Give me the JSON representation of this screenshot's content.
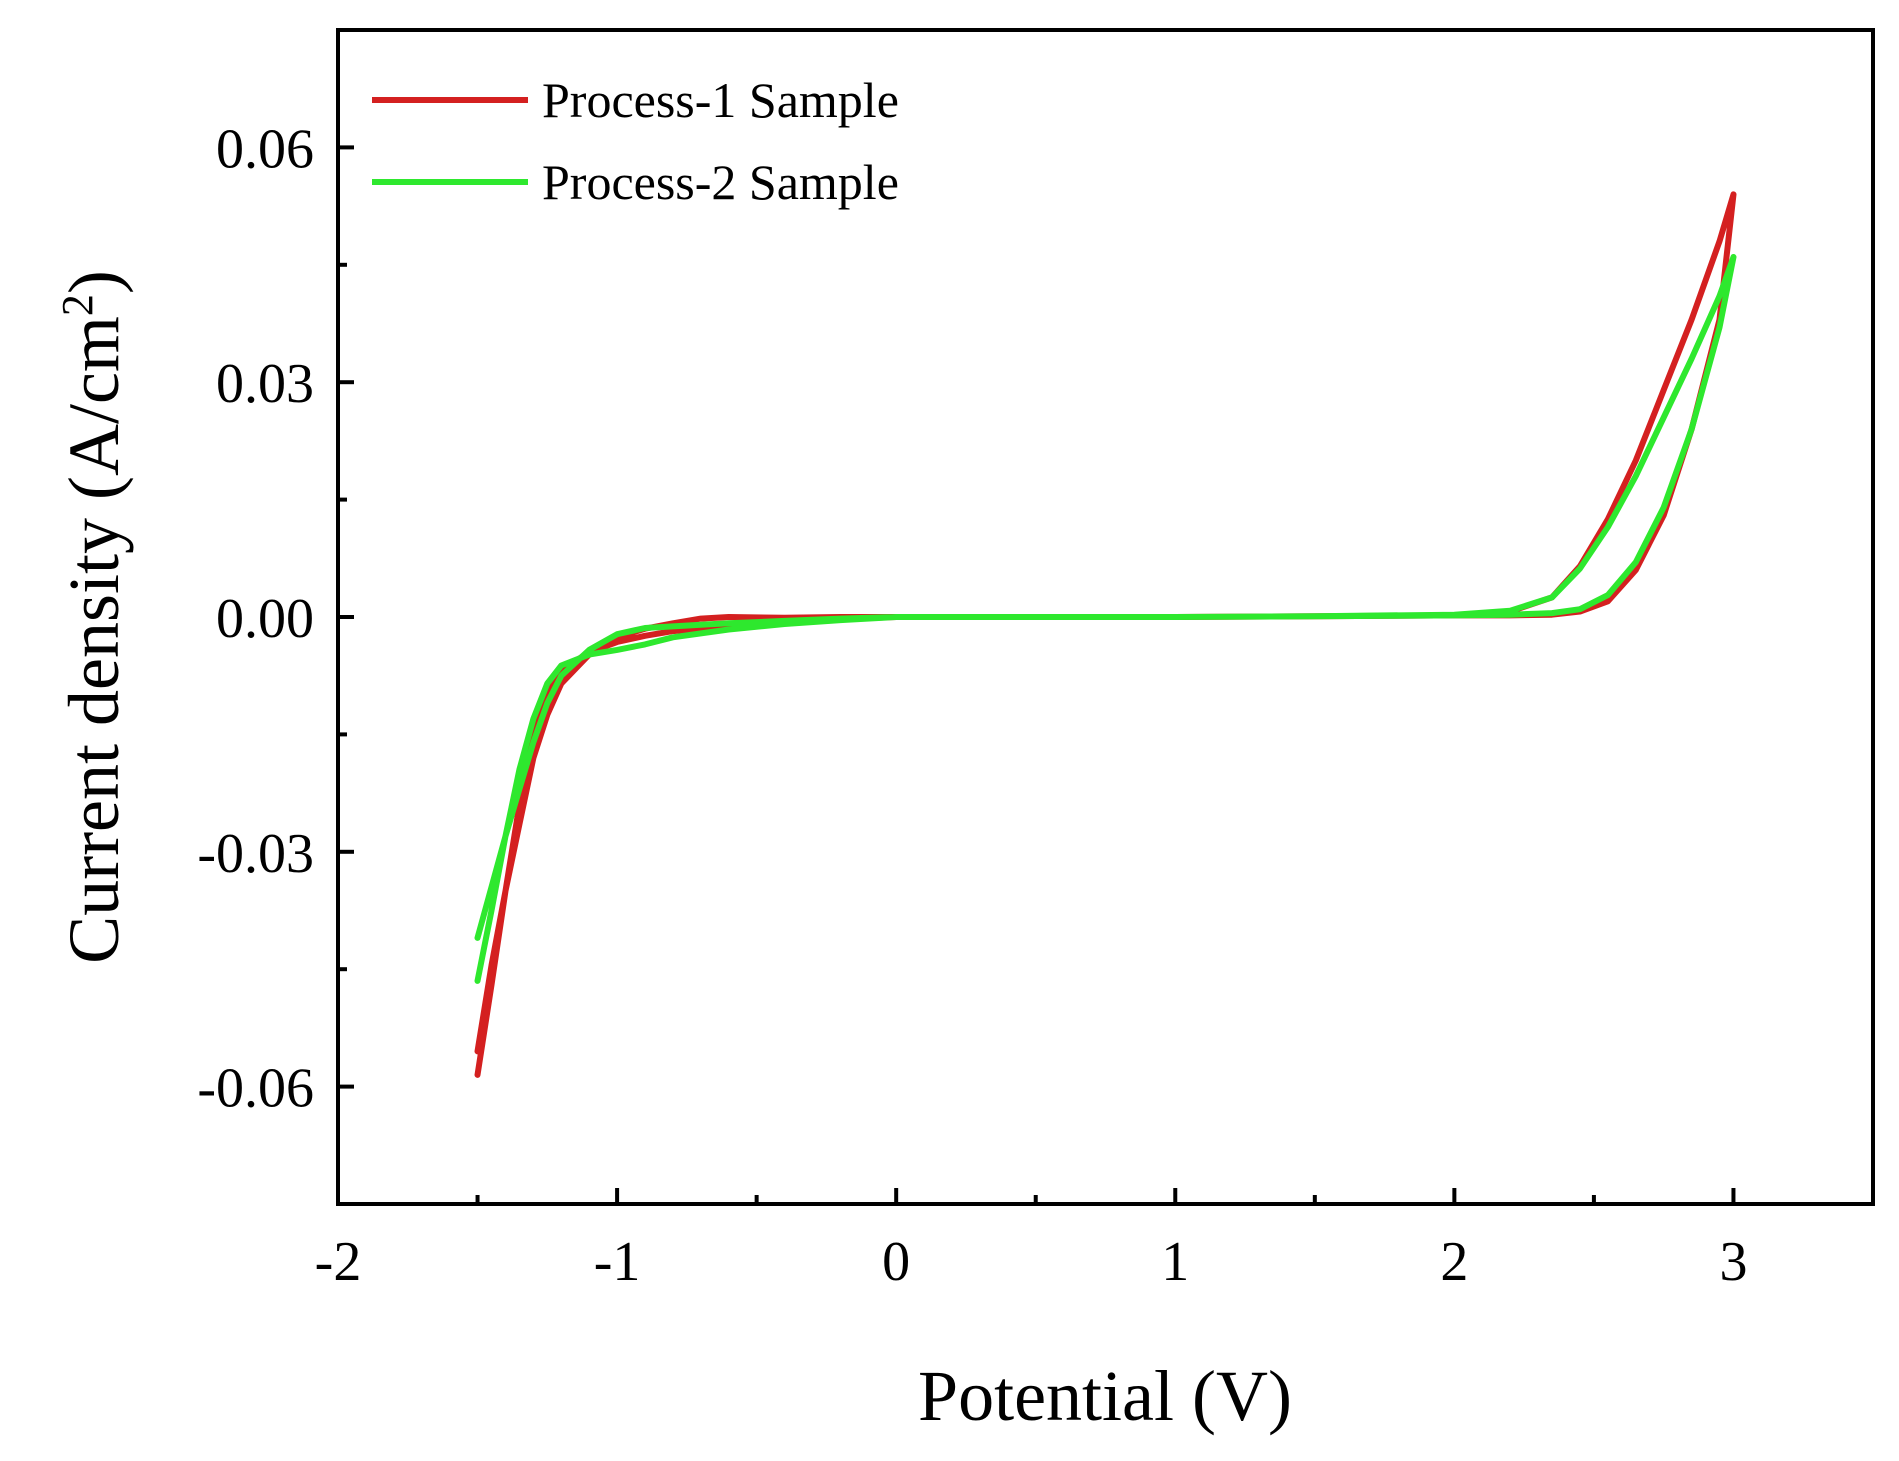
{
  "chart_data": {
    "type": "line",
    "title": "",
    "xlabel": "Potential (V)",
    "ylabel_main": "Current density (A/cm",
    "ylabel_sup": "2",
    "ylabel_close": ")",
    "xlim": [
      -2,
      3.5
    ],
    "ylim": [
      -0.075,
      0.075
    ],
    "x_ticks": [
      -2,
      -1,
      0,
      1,
      2,
      3
    ],
    "x_tick_labels": [
      "-2",
      "-1",
      "0",
      "1",
      "2",
      "3"
    ],
    "x_minor_ticks": [
      -1.5,
      -0.5,
      0.5,
      1.5,
      2.5
    ],
    "y_ticks": [
      0.06,
      0.03,
      0.0,
      -0.03,
      -0.06
    ],
    "y_tick_labels": [
      "0.06",
      "0.03",
      "0.00",
      "-0.03",
      "-0.06"
    ],
    "y_minor_ticks": [
      0.045,
      0.015,
      -0.015,
      -0.045
    ],
    "grid": false,
    "legend_position": "top-left",
    "series": [
      {
        "name": "Process-1 Sample",
        "color": "#d42020",
        "points": [
          [
            -1.5,
            -0.0585
          ],
          [
            -1.45,
            -0.047
          ],
          [
            -1.4,
            -0.035
          ],
          [
            -1.35,
            -0.024
          ],
          [
            -1.3,
            -0.015
          ],
          [
            -1.25,
            -0.0095
          ],
          [
            -1.2,
            -0.0068
          ],
          [
            -1.1,
            -0.0045
          ],
          [
            -1.0,
            -0.0032
          ],
          [
            -0.9,
            -0.0024
          ],
          [
            -0.8,
            -0.0018
          ],
          [
            -0.6,
            -0.0012
          ],
          [
            -0.4,
            -0.0007
          ],
          [
            -0.2,
            -0.0003
          ],
          [
            0.0,
            0.0
          ],
          [
            0.5,
            0.0
          ],
          [
            1.0,
            0.0
          ],
          [
            1.5,
            0.0001
          ],
          [
            2.0,
            0.0002
          ],
          [
            2.2,
            0.0002
          ],
          [
            2.35,
            0.0003
          ],
          [
            2.45,
            0.0007
          ],
          [
            2.55,
            0.002
          ],
          [
            2.65,
            0.006
          ],
          [
            2.75,
            0.013
          ],
          [
            2.85,
            0.024
          ],
          [
            2.95,
            0.038
          ],
          [
            3.0,
            0.054
          ],
          [
            2.95,
            0.048
          ],
          [
            2.85,
            0.038
          ],
          [
            2.75,
            0.029
          ],
          [
            2.65,
            0.02
          ],
          [
            2.55,
            0.0125
          ],
          [
            2.45,
            0.0065
          ],
          [
            2.35,
            0.0025
          ],
          [
            2.2,
            0.0007
          ],
          [
            2.0,
            0.0002
          ],
          [
            1.5,
            0.0001
          ],
          [
            1.0,
            0.0
          ],
          [
            0.5,
            0.0
          ],
          [
            0.0,
            0.0
          ],
          [
            -0.2,
            0.0
          ],
          [
            -0.4,
            -0.0001
          ],
          [
            -0.6,
            0.0
          ],
          [
            -0.7,
            -0.0002
          ],
          [
            -0.8,
            -0.0008
          ],
          [
            -0.9,
            -0.0015
          ],
          [
            -1.0,
            -0.0026
          ],
          [
            -1.1,
            -0.0048
          ],
          [
            -1.2,
            -0.0085
          ],
          [
            -1.25,
            -0.0125
          ],
          [
            -1.3,
            -0.018
          ],
          [
            -1.35,
            -0.0265
          ],
          [
            -1.4,
            -0.035
          ],
          [
            -1.45,
            -0.0445
          ],
          [
            -1.5,
            -0.0555
          ]
        ]
      },
      {
        "name": "Process-2 Sample",
        "color": "#2ee82e",
        "points": [
          [
            -1.5,
            -0.0465
          ],
          [
            -1.45,
            -0.0375
          ],
          [
            -1.4,
            -0.028
          ],
          [
            -1.35,
            -0.0195
          ],
          [
            -1.3,
            -0.013
          ],
          [
            -1.25,
            -0.0085
          ],
          [
            -1.2,
            -0.0062
          ],
          [
            -1.1,
            -0.0048
          ],
          [
            -1.0,
            -0.0042
          ],
          [
            -0.9,
            -0.0035
          ],
          [
            -0.8,
            -0.0026
          ],
          [
            -0.6,
            -0.0016
          ],
          [
            -0.4,
            -0.0009
          ],
          [
            -0.2,
            -0.0004
          ],
          [
            0.0,
            0.0
          ],
          [
            0.5,
            0.0
          ],
          [
            1.0,
            0.0
          ],
          [
            1.5,
            0.0001
          ],
          [
            2.0,
            0.0002
          ],
          [
            2.2,
            0.0003
          ],
          [
            2.35,
            0.0005
          ],
          [
            2.45,
            0.001
          ],
          [
            2.55,
            0.0028
          ],
          [
            2.65,
            0.007
          ],
          [
            2.75,
            0.014
          ],
          [
            2.85,
            0.024
          ],
          [
            2.95,
            0.037
          ],
          [
            3.0,
            0.046
          ],
          [
            2.95,
            0.041
          ],
          [
            2.85,
            0.033
          ],
          [
            2.75,
            0.0255
          ],
          [
            2.65,
            0.018
          ],
          [
            2.55,
            0.0115
          ],
          [
            2.45,
            0.0062
          ],
          [
            2.35,
            0.0025
          ],
          [
            2.2,
            0.0008
          ],
          [
            2.0,
            0.0003
          ],
          [
            1.5,
            0.0001
          ],
          [
            1.0,
            0.0
          ],
          [
            0.5,
            0.0
          ],
          [
            0.0,
            0.0
          ],
          [
            -0.2,
            -0.0002
          ],
          [
            -0.4,
            -0.0005
          ],
          [
            -0.6,
            -0.0008
          ],
          [
            -0.7,
            -0.001
          ],
          [
            -0.8,
            -0.0012
          ],
          [
            -0.9,
            -0.0014
          ],
          [
            -1.0,
            -0.0022
          ],
          [
            -1.1,
            -0.0042
          ],
          [
            -1.2,
            -0.0075
          ],
          [
            -1.25,
            -0.011
          ],
          [
            -1.3,
            -0.016
          ],
          [
            -1.35,
            -0.022
          ],
          [
            -1.4,
            -0.028
          ],
          [
            -1.45,
            -0.0345
          ],
          [
            -1.5,
            -0.041
          ]
        ]
      }
    ]
  }
}
